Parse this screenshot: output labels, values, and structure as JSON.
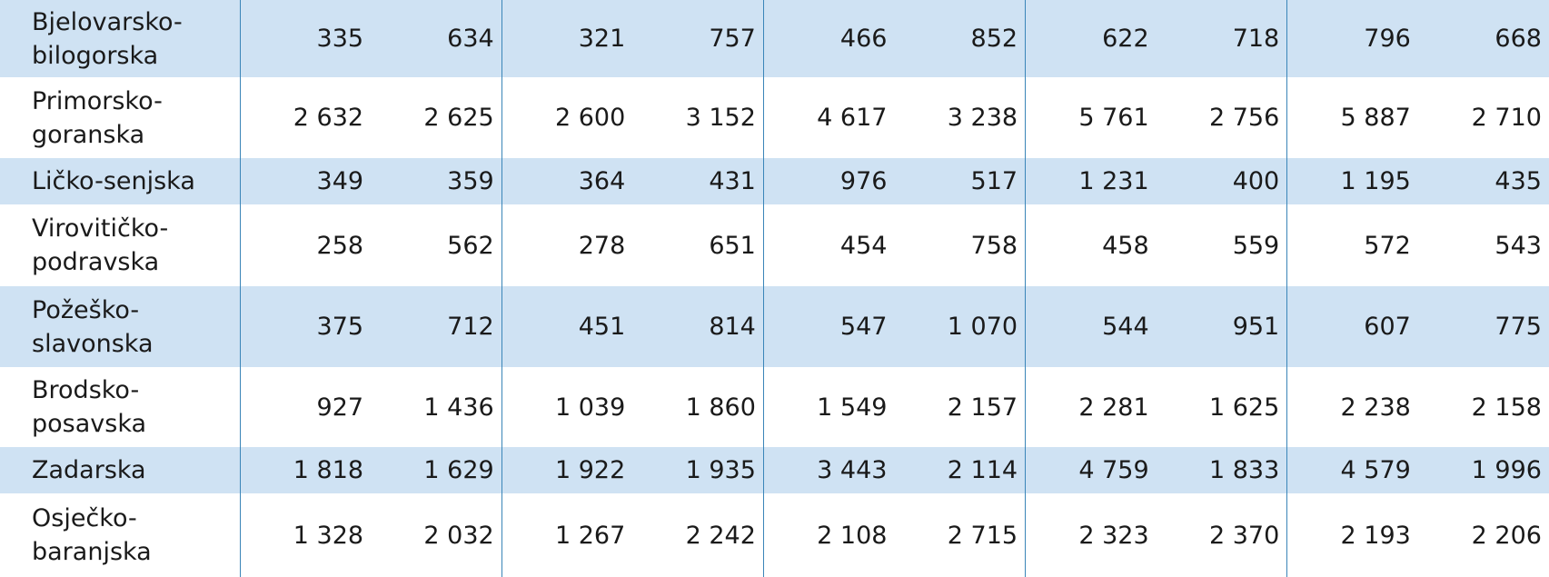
{
  "table": {
    "rows": [
      [
        "Bjelovarsko-bilogorska",
        "335",
        "634",
        "321",
        "757",
        "466",
        "852",
        "622",
        "718",
        "796",
        "668"
      ],
      [
        "Primorsko-goranska",
        "2 632",
        "2 625",
        "2 600",
        "3 152",
        "4 617",
        "3 238",
        "5 761",
        "2 756",
        "5 887",
        "2 710"
      ],
      [
        "Ličko-senjska",
        "349",
        "359",
        "364",
        "431",
        "976",
        "517",
        "1 231",
        "400",
        "1 195",
        "435"
      ],
      [
        "Virovitičko-podravska",
        "258",
        "562",
        "278",
        "651",
        "454",
        "758",
        "458",
        "559",
        "572",
        "543"
      ],
      [
        "Požeško-slavonska",
        "375",
        "712",
        "451",
        "814",
        "547",
        "1 070",
        "544",
        "951",
        "607",
        "775"
      ],
      [
        "Brodsko-posavska",
        "927",
        "1 436",
        "1 039",
        "1 860",
        "1 549",
        "2 157",
        "2 281",
        "1 625",
        "2 238",
        "2 158"
      ],
      [
        "Zadarska",
        "1 818",
        "1 629",
        "1 922",
        "1 935",
        "3 443",
        "2 114",
        "4 759",
        "1 833",
        "4 579",
        "1 996"
      ],
      [
        "Osječko-baranjska",
        "1 328",
        "2 032",
        "1 267",
        "2 242",
        "2 108",
        "2 715",
        "2 323",
        "2 370",
        "2 193",
        "2 206"
      ]
    ]
  }
}
